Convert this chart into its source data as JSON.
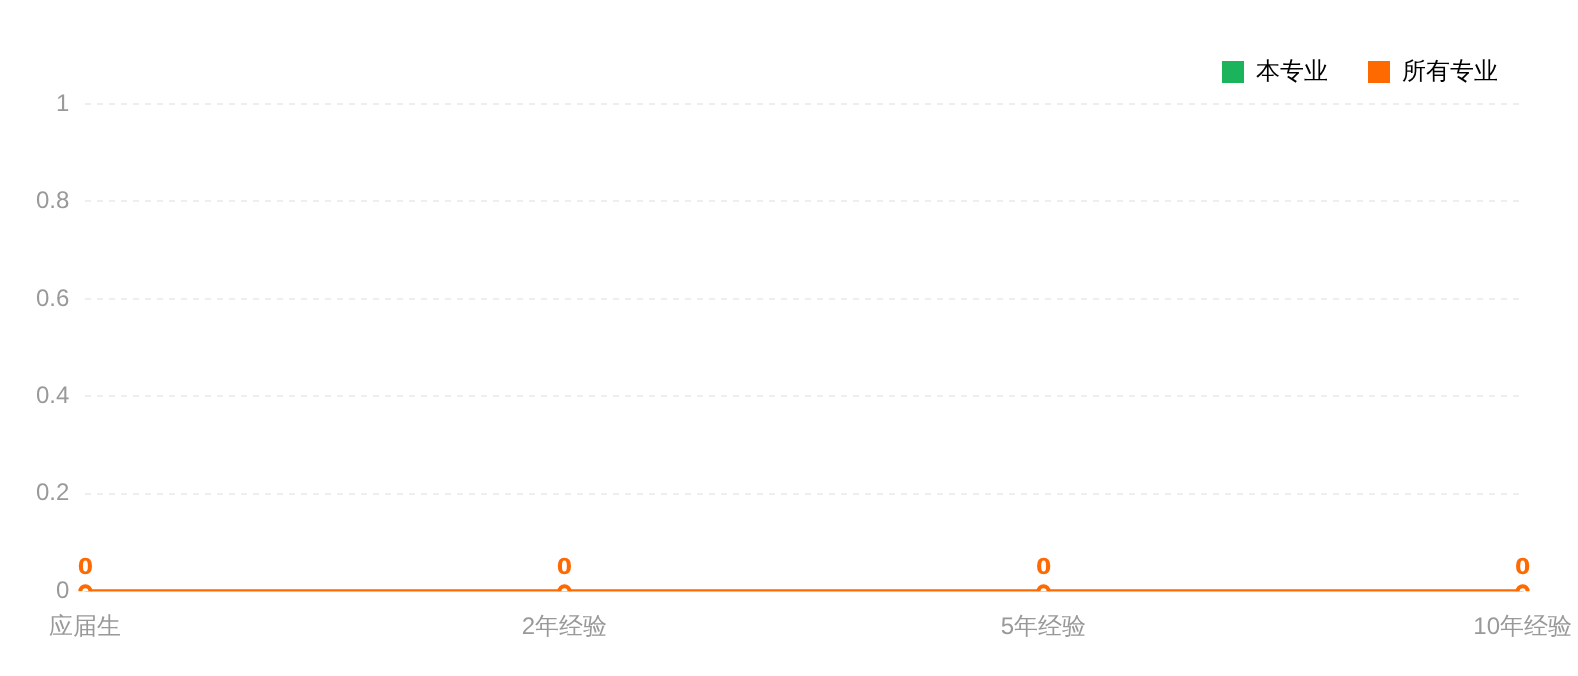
{
  "chart_data": {
    "type": "line",
    "categories": [
      "应届生",
      "2年经验",
      "5年经验",
      "10年经验"
    ],
    "series": [
      {
        "name": "本专业",
        "color": "#1bb35b",
        "values": [
          null,
          null,
          null,
          null
        ]
      },
      {
        "name": "所有专业",
        "color": "#ff6a00",
        "values": [
          0,
          0,
          0,
          0
        ]
      }
    ],
    "ylim": [
      0,
      1
    ],
    "yticks": [
      0,
      0.2,
      0.4,
      0.6,
      0.8,
      1
    ],
    "grid": "y",
    "legend": "top right",
    "marker": "circle",
    "line_style": "solid",
    "data_labels": true
  }
}
